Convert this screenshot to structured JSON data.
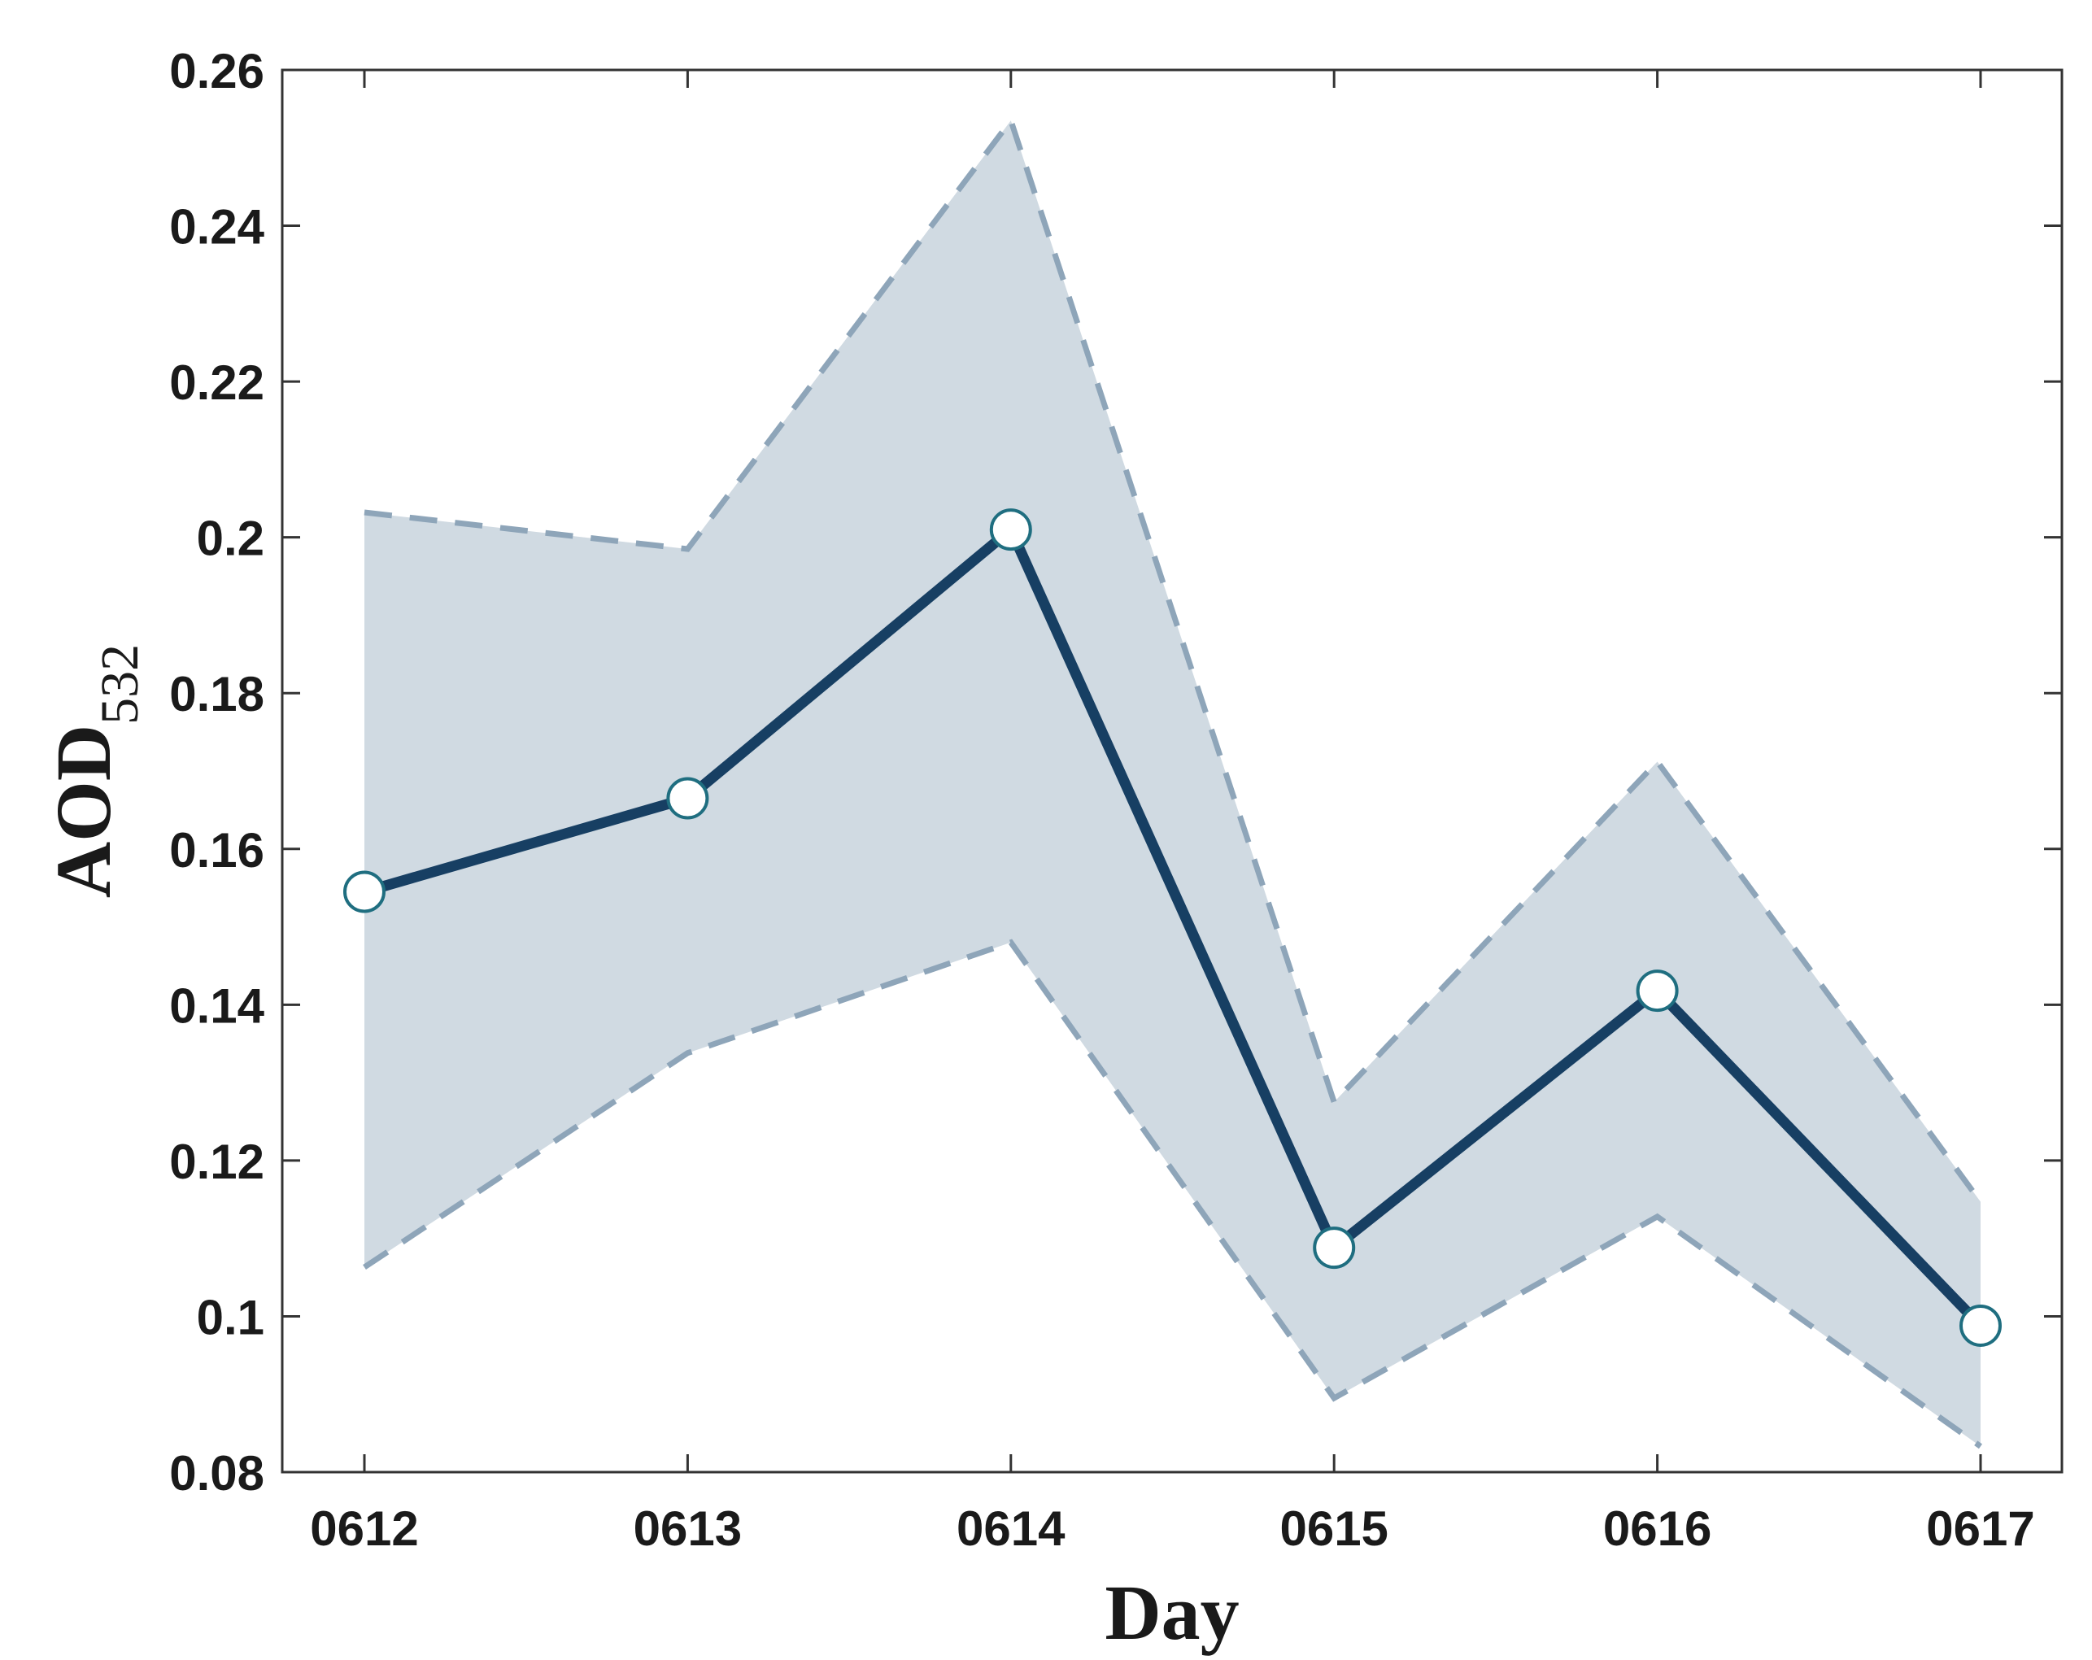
{
  "chart_data": {
    "type": "line",
    "title": "",
    "xlabel": "Day",
    "ylabel": {
      "main": "AOD",
      "subscript": "532"
    },
    "categories": [
      "0612",
      "0613",
      "0614",
      "0615",
      "0616",
      "0617"
    ],
    "series": [
      {
        "values": [
          0.1545,
          0.1665,
          0.201,
          0.1088,
          0.1418,
          0.0988
        ],
        "upper": [
          0.2032,
          0.1985,
          0.2535,
          0.1275,
          0.1712,
          0.1147
        ],
        "lower": [
          0.1063,
          0.1338,
          0.148,
          0.0895,
          0.1128,
          0.0833
        ]
      }
    ],
    "ylim": [
      0.08,
      0.26
    ],
    "yticks": [
      "0.08",
      "0.1",
      "0.12",
      "0.14",
      "0.16",
      "0.18",
      "0.2",
      "0.22",
      "0.24",
      "0.26"
    ],
    "grid": false,
    "legend": "none",
    "colors": {
      "line": "#173f63",
      "band_fill": "#d0dae2",
      "band_edge": "#8ea5b9",
      "marker_fill": "#ffffff",
      "marker_edge": "#1f6e80",
      "axis": "#333333"
    }
  }
}
